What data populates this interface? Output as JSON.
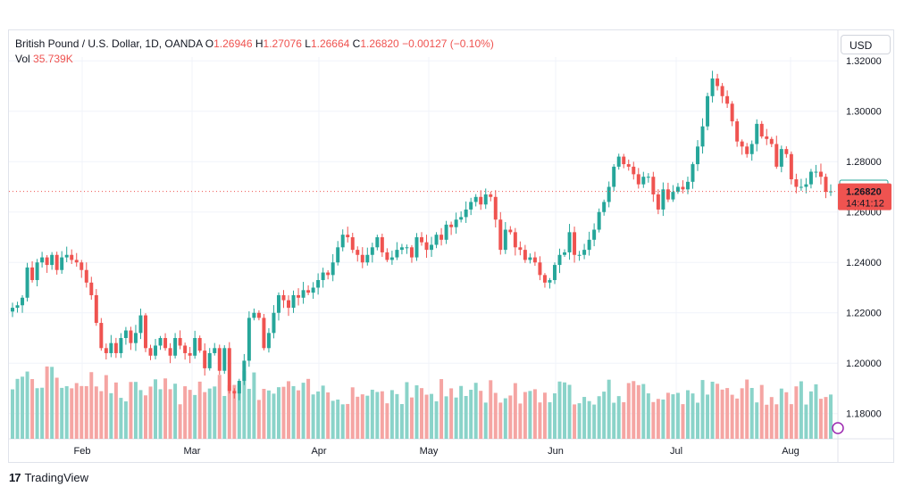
{
  "legend": {
    "symbol": "British Pound / U.S. Dollar, 1D, OANDA",
    "o_label": "O",
    "o_value": "1.26946",
    "h_label": "H",
    "h_value": "1.27076",
    "l_label": "L",
    "l_value": "1.26664",
    "c_label": "C",
    "c_value": "1.26820",
    "change": "−0.00127 (−0.10%)",
    "vol_label": "Vol",
    "vol_value": "35.739K"
  },
  "currency_button": "USD",
  "brand": {
    "logo": "17",
    "name": "TradingView"
  },
  "colors": {
    "up": "#26a69a",
    "down": "#ef5350",
    "up_volume": "#8ad3c9",
    "down_volume": "#f5a5a3",
    "grid": "#f0f3fa",
    "price_line": "#ef5350"
  },
  "price_labels": {
    "open_value": "1.26946",
    "last_value": "1.26820",
    "countdown": "14:41:12"
  },
  "chart_data": {
    "type": "candlestick",
    "title": "British Pound / U.S. Dollar, 1D, OANDA",
    "ylim": [
      1.17,
      1.3215
    ],
    "y_ticks": [
      "1.18000",
      "1.20000",
      "1.22000",
      "1.24000",
      "1.26000",
      "1.28000",
      "1.30000",
      "1.32000"
    ],
    "x_ticks": [
      "Feb",
      "Mar",
      "Apr",
      "May",
      "Jun",
      "Jul",
      "Aug"
    ],
    "last_price": 1.2682,
    "series": [
      {
        "name": "price",
        "closes": [
          1.222,
          1.223,
          1.226,
          1.238,
          1.233,
          1.24,
          1.242,
          1.239,
          1.243,
          1.237,
          1.242,
          1.243,
          1.241,
          1.24,
          1.237,
          1.232,
          1.227,
          1.216,
          1.206,
          1.204,
          1.208,
          1.204,
          1.21,
          1.213,
          1.208,
          1.212,
          1.219,
          1.206,
          1.203,
          1.207,
          1.21,
          1.206,
          1.203,
          1.21,
          1.207,
          1.204,
          1.203,
          1.21,
          1.205,
          1.198,
          1.204,
          1.206,
          1.197,
          1.206,
          1.189,
          1.188,
          1.193,
          1.201,
          1.218,
          1.22,
          1.218,
          1.206,
          1.212,
          1.22,
          1.227,
          1.225,
          1.222,
          1.227,
          1.226,
          1.229,
          1.228,
          1.23,
          1.233,
          1.236,
          1.235,
          1.24,
          1.246,
          1.251,
          1.25,
          1.245,
          1.243,
          1.24,
          1.243,
          1.246,
          1.25,
          1.244,
          1.241,
          1.242,
          1.245,
          1.246,
          1.246,
          1.242,
          1.25,
          1.248,
          1.245,
          1.247,
          1.251,
          1.249,
          1.255,
          1.254,
          1.257,
          1.258,
          1.261,
          1.264,
          1.266,
          1.263,
          1.267,
          1.266,
          1.257,
          1.245,
          1.253,
          1.252,
          1.246,
          1.245,
          1.241,
          1.242,
          1.24,
          1.235,
          1.232,
          1.233,
          1.239,
          1.243,
          1.244,
          1.252,
          1.243,
          1.243,
          1.245,
          1.249,
          1.253,
          1.26,
          1.264,
          1.27,
          1.278,
          1.282,
          1.279,
          1.278,
          1.275,
          1.271,
          1.274,
          1.274,
          1.267,
          1.261,
          1.269,
          1.265,
          1.268,
          1.27,
          1.269,
          1.272,
          1.279,
          1.286,
          1.294,
          1.306,
          1.313,
          1.31,
          1.306,
          1.303,
          1.296,
          1.288,
          1.286,
          1.283,
          1.287,
          1.295,
          1.29,
          1.289,
          1.287,
          1.278,
          1.285,
          1.283,
          1.273,
          1.27,
          1.27,
          1.271,
          1.276,
          1.276,
          1.274,
          1.268,
          1.2682
        ]
      }
    ]
  }
}
